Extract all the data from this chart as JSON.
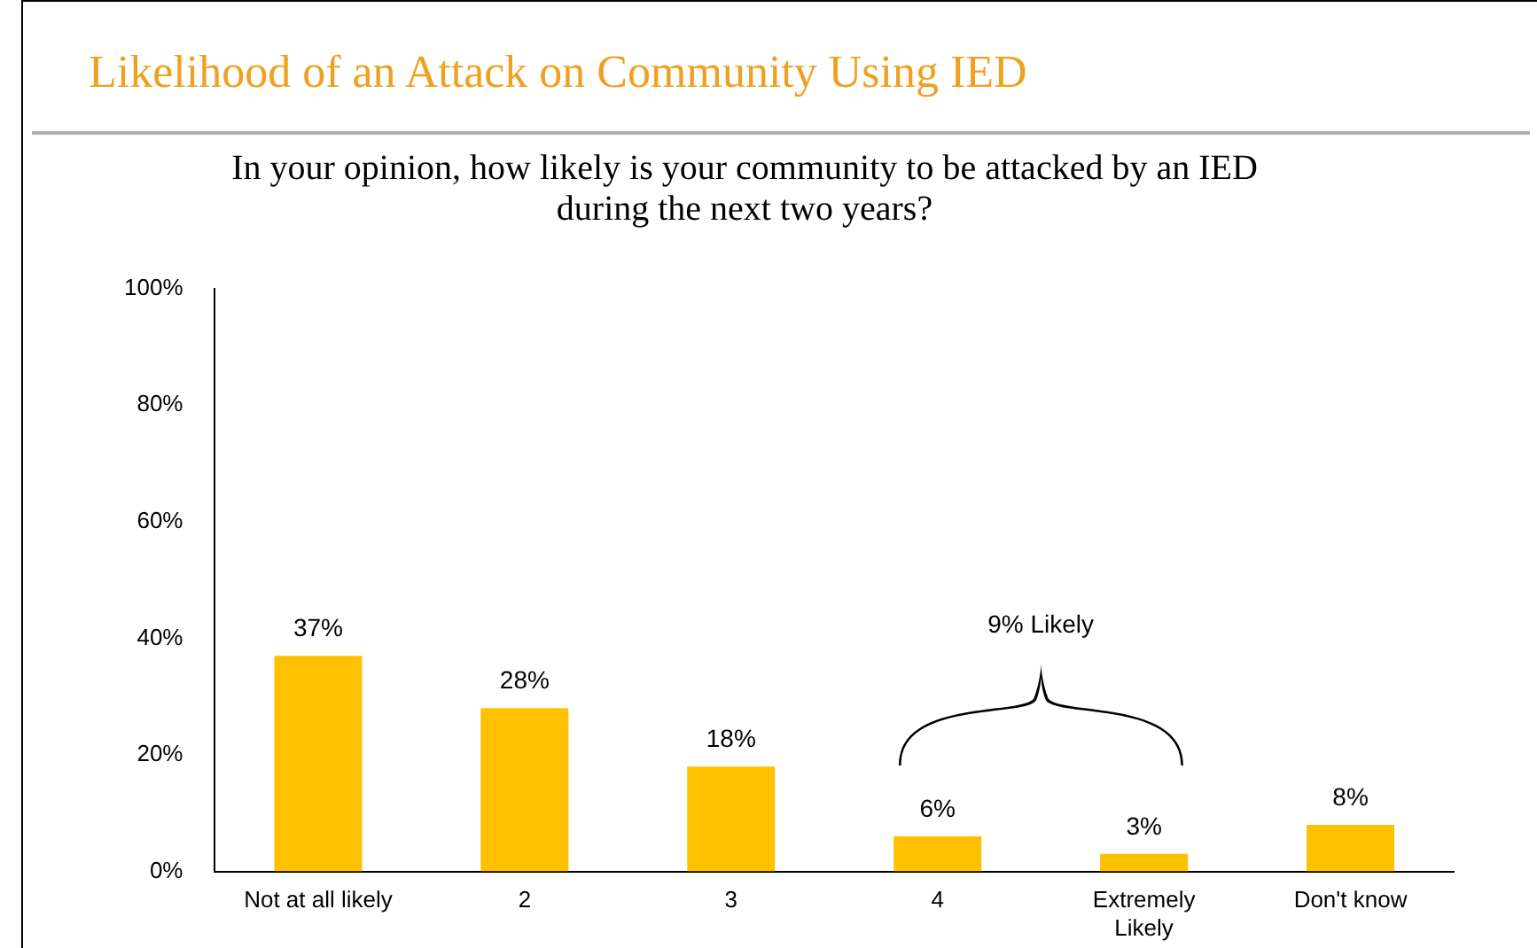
{
  "chart_data": {
    "type": "bar",
    "title": "Likelihood of an Attack  on Community Using IED",
    "subtitle": "In your opinion, how likely is your community to be attacked by an IED during the next two years?",
    "categories": [
      "Not at all likely",
      "2",
      "3",
      "4",
      "Extremely Likely",
      "Don't know"
    ],
    "values": [
      37,
      28,
      18,
      6,
      3,
      8
    ],
    "color": "#ffc000",
    "ylim": [
      0,
      100
    ],
    "yticks": [
      {
        "value": 0,
        "label": "0%"
      },
      {
        "value": 20,
        "label": "20%"
      },
      {
        "value": 40,
        "label": "40%"
      },
      {
        "value": 60,
        "label": "60%"
      },
      {
        "value": 80,
        "label": "80%"
      },
      {
        "value": 100,
        "label": "100%"
      }
    ],
    "data_labels": true,
    "value_labels": [
      "37%",
      "28%",
      "18%",
      "6%",
      "3%",
      "8%"
    ],
    "grid": false,
    "legend": false,
    "annotations": [
      "9% Likely"
    ]
  }
}
